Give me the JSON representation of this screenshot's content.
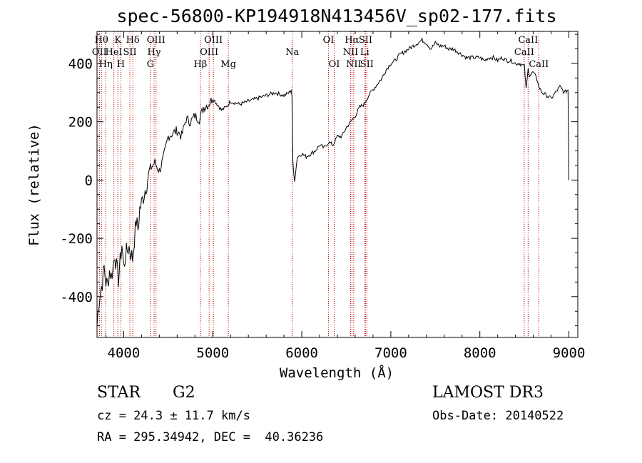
{
  "chart_data": {
    "type": "line",
    "title": "spec-56800-KP194918N413456V_sp02-177.fits",
    "xlabel": "Wavelength (Å)",
    "ylabel": "Flux (relative)",
    "xlim": [
      3700,
      9100
    ],
    "ylim": [
      -540,
      510
    ],
    "xticks": [
      4000,
      5000,
      6000,
      7000,
      8000,
      9000
    ],
    "yticks": [
      -400,
      -200,
      0,
      200,
      400
    ],
    "series": [
      {
        "x": [
          3700,
          3720,
          3740,
          3760,
          3780,
          3800,
          3820,
          3840,
          3860,
          3880,
          3900,
          3920,
          3940,
          3960,
          3980,
          4000,
          4020,
          4040,
          4060,
          4080,
          4100,
          4120,
          4140,
          4160,
          4180,
          4200,
          4250,
          4300,
          4350,
          4400,
          4450,
          4500,
          4550,
          4600,
          4650,
          4700,
          4750,
          4800,
          4850,
          4900,
          4950,
          5000,
          5050,
          5100,
          5150,
          5200,
          5300,
          5400,
          5500,
          5600,
          5700,
          5800,
          5860,
          5880,
          5890,
          5900,
          5910,
          5920,
          5950,
          6000,
          6050,
          6100,
          6150,
          6200,
          6250,
          6300,
          6350,
          6400,
          6450,
          6500,
          6550,
          6600,
          6650,
          6700,
          6750,
          6800,
          6850,
          6900,
          6950,
          7000,
          7050,
          7100,
          7150,
          7200,
          7250,
          7300,
          7350,
          7400,
          7450,
          7500,
          7550,
          7600,
          7650,
          7700,
          7750,
          7800,
          7850,
          7900,
          7950,
          8000,
          8050,
          8100,
          8150,
          8200,
          8250,
          8300,
          8350,
          8400,
          8450,
          8500,
          8520,
          8542,
          8560,
          8600,
          8650,
          8662,
          8700,
          8750,
          8800,
          8850,
          8900,
          8950,
          8990,
          9000
        ],
        "y": [
          -500,
          -420,
          -380,
          -350,
          -300,
          -350,
          -360,
          -310,
          -330,
          -300,
          -250,
          -300,
          -340,
          -280,
          -220,
          -300,
          -260,
          -240,
          -230,
          -250,
          -270,
          -200,
          -140,
          -170,
          -100,
          -80,
          -20,
          40,
          60,
          30,
          80,
          150,
          160,
          170,
          150,
          210,
          200,
          220,
          210,
          250,
          260,
          280,
          260,
          240,
          250,
          270,
          260,
          270,
          280,
          290,
          300,
          290,
          300,
          310,
          290,
          60,
          20,
          0,
          80,
          90,
          80,
          90,
          100,
          120,
          110,
          130,
          120,
          150,
          150,
          180,
          200,
          220,
          250,
          260,
          290,
          310,
          330,
          350,
          380,
          400,
          410,
          430,
          440,
          450,
          460,
          470,
          480,
          470,
          450,
          470,
          460,
          460,
          450,
          450,
          440,
          430,
          420,
          420,
          420,
          420,
          410,
          420,
          420,
          410,
          420,
          410,
          410,
          400,
          400,
          390,
          310,
          380,
          360,
          370,
          340,
          320,
          300,
          290,
          280,
          300,
          320,
          300,
          310,
          0
        ]
      }
    ],
    "line_markers": [
      {
        "x": 3750,
        "label": "Hθ",
        "row": 1
      },
      {
        "x": 3727,
        "label": "OII",
        "row": 2
      },
      {
        "x": 3798,
        "label": "Hη",
        "row": 3
      },
      {
        "x": 3889,
        "label": "HeI",
        "row": 2
      },
      {
        "x": 3934,
        "label": "K",
        "row": 1
      },
      {
        "x": 3968,
        "label": "H",
        "row": 3
      },
      {
        "x": 4069,
        "label": "SII",
        "row": 2
      },
      {
        "x": 4102,
        "label": "Hδ",
        "row": 1
      },
      {
        "x": 4300,
        "label": "G",
        "row": 3
      },
      {
        "x": 4341,
        "label": "Hγ",
        "row": 2
      },
      {
        "x": 4363,
        "label": "OIII",
        "row": 1
      },
      {
        "x": 4861,
        "label": "Hβ",
        "row": 3
      },
      {
        "x": 4959,
        "label": "OIII",
        "row": 2
      },
      {
        "x": 5007,
        "label": "OIII",
        "row": 1
      },
      {
        "x": 5175,
        "label": "Mg",
        "row": 3
      },
      {
        "x": 5893,
        "label": "Na",
        "row": 2
      },
      {
        "x": 6300,
        "label": "OI",
        "row": 1
      },
      {
        "x": 6364,
        "label": "OI",
        "row": 3
      },
      {
        "x": 6548,
        "label": "NII",
        "row": 2
      },
      {
        "x": 6563,
        "label": "Hα",
        "row": 1
      },
      {
        "x": 6583,
        "label": "NII",
        "row": 3
      },
      {
        "x": 6707,
        "label": "Li",
        "row": 2
      },
      {
        "x": 6716,
        "label": "SII",
        "row": 1
      },
      {
        "x": 6731,
        "label": "SII",
        "row": 3
      },
      {
        "x": 8498,
        "label": "CaII",
        "row": 2
      },
      {
        "x": 8542,
        "label": "CaII",
        "row": 1
      },
      {
        "x": 8662,
        "label": "CaII",
        "row": 3
      }
    ]
  },
  "info": {
    "class": "STAR",
    "subclass": "G2",
    "survey": "LAMOST DR3",
    "cz": "cz = 24.3 ± 11.7 km/s",
    "obs_date": "Obs-Date: 20140522",
    "radec": "RA = 295.34942, DEC =  40.36236"
  },
  "colors": {
    "line_marker": "#c00000",
    "spectrum": "#000000"
  }
}
